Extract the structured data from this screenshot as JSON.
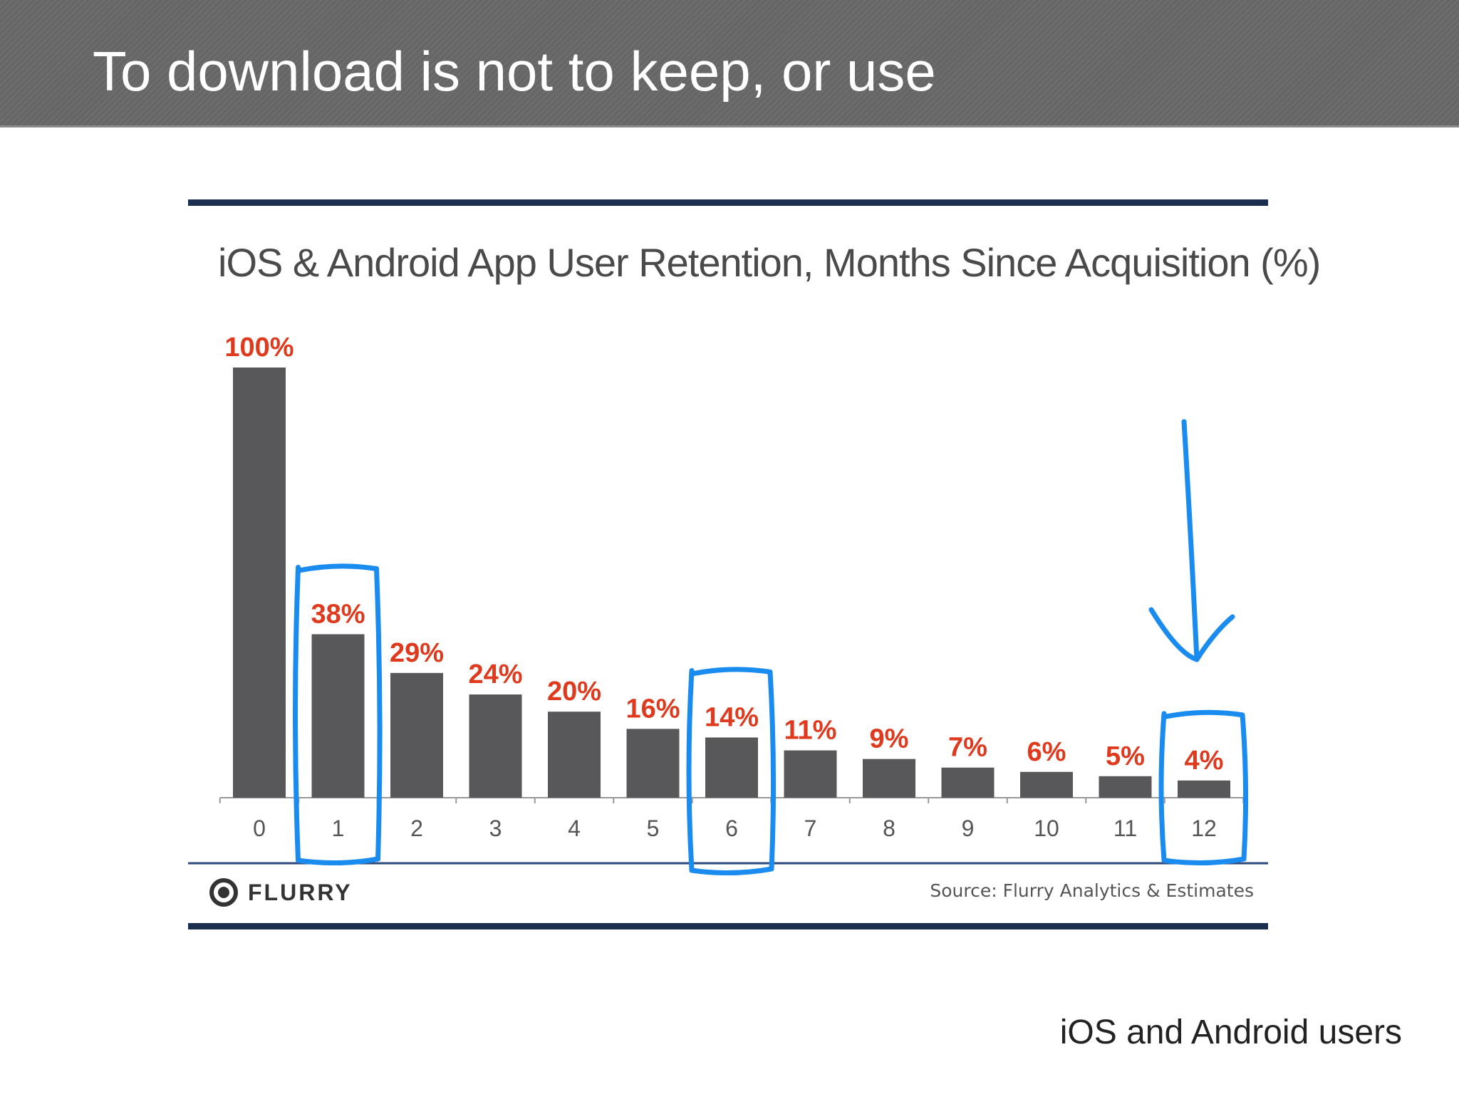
{
  "slide": {
    "title": "To download is not to keep, or use",
    "footer_note": "iOS and Android users"
  },
  "chart_data": {
    "type": "bar",
    "title": "iOS & Android App User Retention, Months Since Acquisition (%)",
    "xlabel": "",
    "ylabel": "",
    "categories": [
      "0",
      "1",
      "2",
      "3",
      "4",
      "5",
      "6",
      "7",
      "8",
      "9",
      "10",
      "11",
      "12"
    ],
    "values": [
      100,
      38,
      29,
      24,
      20,
      16,
      14,
      11,
      9,
      7,
      6,
      5,
      4
    ],
    "data_labels": [
      "100%",
      "38%",
      "29%",
      "24%",
      "20%",
      "16%",
      "14%",
      "11%",
      "9%",
      "7%",
      "6%",
      "5%",
      "4%"
    ],
    "ylim": [
      0,
      100
    ],
    "grid": false,
    "highlighted_categories": [
      "1",
      "6",
      "12"
    ],
    "colors": {
      "bar": "#58585a",
      "data_label": "#e03a1e",
      "highlight": "#1a8cf0",
      "rule": "#1c2e4f"
    }
  },
  "figure": {
    "logo_text": "FLURRY",
    "source": "Source: Flurry Analytics & Estimates"
  }
}
